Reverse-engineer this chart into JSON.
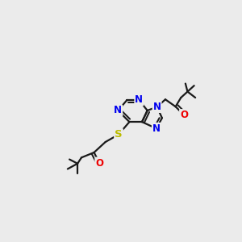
{
  "bg_color": "#ebebeb",
  "bond_color": "#1a1a1a",
  "N_color": "#0000ee",
  "O_color": "#ee0000",
  "S_color": "#bbbb00",
  "lw": 1.6,
  "fs": 8.5,
  "fig_size": [
    3.0,
    3.0
  ],
  "dpi": 100,
  "xlim": [
    0.05,
    0.75
  ],
  "ylim": [
    0.1,
    0.9
  ]
}
